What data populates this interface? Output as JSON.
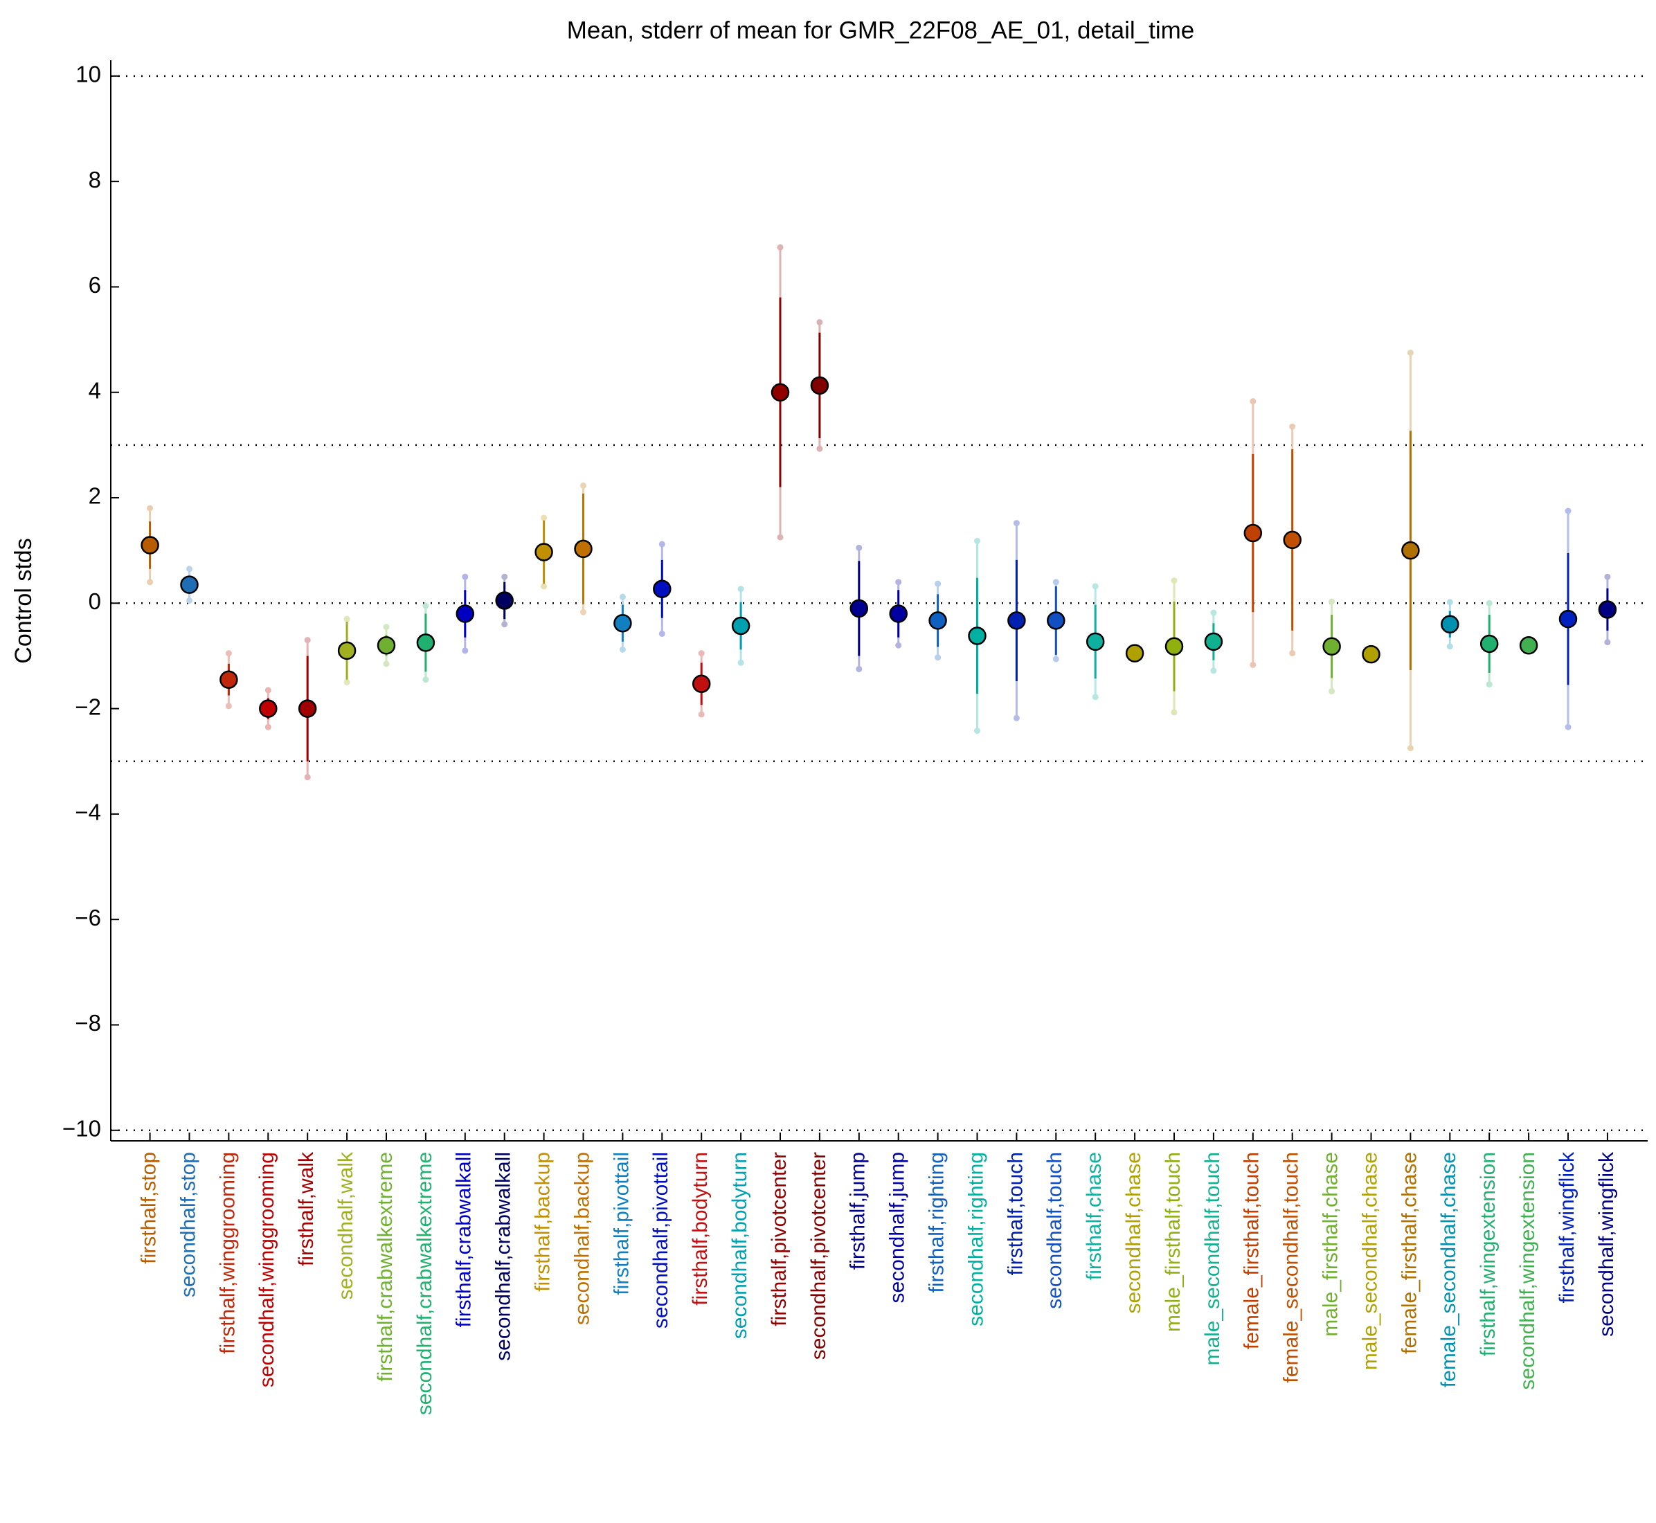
{
  "chart_data": {
    "type": "errorbar",
    "title": "Mean, stderr of mean for GMR_22F08_AE_01, detail_time",
    "y_label": "Control stds",
    "ylim": [
      -10.2,
      10.3
    ],
    "yticks": [
      {
        "value": -10,
        "label": "−10"
      },
      {
        "value": -8,
        "label": "−8"
      },
      {
        "value": -6,
        "label": "−6"
      },
      {
        "value": -4,
        "label": "−4"
      },
      {
        "value": -2,
        "label": "−2"
      },
      0,
      2,
      4,
      6,
      8,
      10
    ],
    "reference_lines": [
      10,
      3,
      0,
      -3,
      -10
    ],
    "categories": [
      "firsthalf,stop",
      "secondhalf,stop",
      "firsthalf,winggrooming",
      "secondhalf,winggrooming",
      "firsthalf,walk",
      "secondhalf,walk",
      "firsthalf,crabwalkextreme",
      "secondhalf,crabwalkextreme",
      "firsthalf,crabwalkall",
      "secondhalf,crabwalkall",
      "firsthalf,backup",
      "secondhalf,backup",
      "firsthalf,pivottail",
      "secondhalf,pivottail",
      "firsthalf,bodyturn",
      "secondhalf,bodyturn",
      "firsthalf,pivotcenter",
      "secondhalf,pivotcenter",
      "firsthalf,jump",
      "secondhalf,jump",
      "firsthalf,righting",
      "secondhalf,righting",
      "firsthalf,touch",
      "secondhalf,touch",
      "firsthalf,chase",
      "secondhalf,chase",
      "male_firsthalf,touch",
      "male_secondhalf,touch",
      "female_firsthalf,touch",
      "female_secondhalf,touch",
      "male_firsthalf,chase",
      "male_secondhalf,chase",
      "female_firsthalf,chase",
      "female_secondhalf,chase",
      "firsthalf,wingextension",
      "secondhalf,wingextension",
      "firsthalf,wingflick",
      "secondhalf,wingflick"
    ],
    "values": [
      1.1,
      0.35,
      -1.45,
      -2.0,
      -2.0,
      -0.9,
      -0.8,
      -0.75,
      -0.2,
      0.05,
      0.97,
      1.03,
      -0.38,
      0.27,
      -1.53,
      -0.43,
      4.0,
      4.13,
      -0.1,
      -0.2,
      -0.33,
      -0.62,
      -0.33,
      -0.33,
      -0.73,
      -0.95,
      -0.82,
      -0.73,
      1.33,
      1.2,
      -0.82,
      -0.97,
      1.0,
      -0.4,
      -0.77,
      -0.8,
      -0.3,
      -0.12
    ],
    "errors": [
      0.45,
      0.1,
      0.3,
      0.2,
      1.0,
      0.55,
      0.2,
      0.55,
      0.45,
      0.35,
      0.6,
      1.05,
      0.35,
      0.55,
      0.4,
      0.45,
      1.8,
      1.0,
      0.9,
      0.45,
      0.5,
      1.1,
      1.15,
      0.65,
      0.7,
      0.05,
      0.85,
      0.35,
      1.5,
      1.72,
      0.6,
      0.05,
      2.27,
      0.25,
      0.55,
      0.05,
      1.25,
      0.4
    ],
    "spread": [
      0.7,
      0.3,
      0.5,
      0.35,
      1.3,
      0.6,
      0.35,
      0.7,
      0.7,
      0.45,
      0.65,
      1.2,
      0.5,
      0.85,
      0.58,
      0.7,
      2.75,
      1.2,
      1.15,
      0.6,
      0.7,
      1.8,
      1.85,
      0.73,
      1.05,
      0.05,
      1.25,
      0.55,
      2.5,
      2.15,
      0.85,
      0.05,
      3.75,
      0.42,
      0.77,
      0.05,
      2.05,
      0.62
    ],
    "colors": [
      "#b85c00",
      "#1f6eb4",
      "#c0280c",
      "#c00000",
      "#a00000",
      "#a0b020",
      "#70b030",
      "#20b070",
      "#0000c0",
      "#000060",
      "#c09000",
      "#c07000",
      "#1080c0",
      "#0010c0",
      "#c01010",
      "#00a0b0",
      "#900000",
      "#800000",
      "#000090",
      "#0000a0",
      "#1060c0",
      "#00b0a0",
      "#0020b0",
      "#1050c0",
      "#10b0a0",
      "#b0a000",
      "#90b010",
      "#10b090",
      "#c04000",
      "#c05000",
      "#70b030",
      "#b0a000",
      "#b07000",
      "#0090b0",
      "#20b070",
      "#40b050",
      "#0020c0",
      "#000080"
    ]
  }
}
